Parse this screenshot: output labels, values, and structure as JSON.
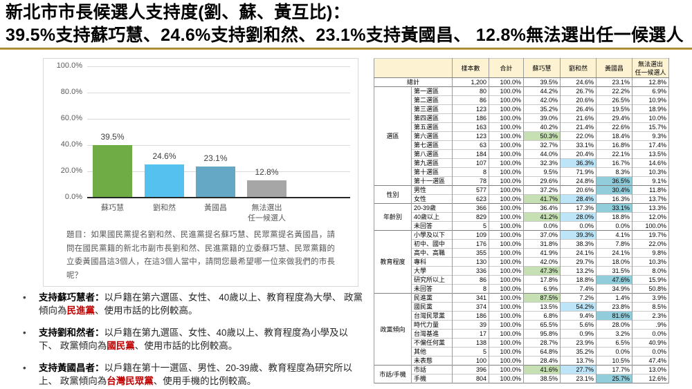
{
  "title": {
    "line1": "新北市市長候選人支持度(劉、蘇、黃互比)：",
    "line2": "39.5%支持蘇巧慧、24.6%支持劉和然、23.1%支持黃國昌、 12.8%無法選出任一候選人"
  },
  "chart_panel": {
    "question": "題目：如果國民黨提名劉和然、民進黨提名蘇巧慧、民眾黨提名黃國昌，請問在國民黨籍的新北市副市長劉和然、民進黨籍的立委蘇巧慧、民眾黨籍的立委黃國昌這3個人，在這3個人當中，請問您最希望哪一位來做我們的市長呢？"
  },
  "findings": [
    {
      "lead": "支持蘇巧慧者：",
      "pre": "以戶籍在第六選區、女性、 40歲以上、教育程度為大學、 政黨傾向為",
      "party": "民進黨",
      "post": "、使用市話的比例較高。"
    },
    {
      "lead": "支持劉和然者：",
      "pre": "以戶籍在第九選區、女性、40歲以上、教育程度為小學及以下、 政黨傾向為",
      "party": "國民黨",
      "post": "、使用市話的比例較高。"
    },
    {
      "lead": "支持黃國昌者：",
      "pre": "以戶籍在第十一選區、男性、20-39歲、教育程度為研究所以上、 政黨傾向為",
      "party": "台灣民眾黨",
      "post": "、使用手機的比例較高。"
    }
  ],
  "chart_data": [
    {
      "type": "bar",
      "title": "",
      "xlabel": "",
      "ylabel": "",
      "categories": [
        "蘇巧慧",
        "劉和然",
        "黃國昌",
        "無法選出\n任一候選人"
      ],
      "values": [
        39.5,
        24.6,
        23.1,
        12.8
      ],
      "data_labels": [
        "39.5%",
        "24.6%",
        "23.1%",
        "12.8%"
      ],
      "yticks": [
        "100.0%",
        "80.0%",
        "60.0%",
        "40.0%",
        "20.0%",
        "0.0%"
      ],
      "ylim": [
        0,
        100
      ],
      "grid": true,
      "legend": "none",
      "bar_colors": [
        "#6FAC46",
        "#55C1EE",
        "#64A8C6",
        "#A6A6A6"
      ]
    },
    {
      "type": "table",
      "columns": [
        "樣本數",
        "合計",
        "蘇巧慧",
        "劉和然",
        "黃國昌",
        "無法選出\n任一候選人"
      ],
      "highlight_colors": {
        "green": "#C6E0B4",
        "blue": "#BDE4F7",
        "teal": "#92CDDC"
      },
      "total_row": {
        "label": "總計",
        "values": [
          "1,200",
          "100.0%",
          "39.5%",
          "24.6%",
          "23.1%",
          "12.8%"
        ]
      },
      "groups": [
        {
          "label": "選區",
          "rows": [
            {
              "label": "第一選區",
              "values": [
                "80",
                "100.0%",
                "44.2%",
                "26.7%",
                "22.2%",
                "6.9%"
              ]
            },
            {
              "label": "第二選區",
              "values": [
                "86",
                "100.0%",
                "42.0%",
                "20.6%",
                "26.5%",
                "10.9%"
              ]
            },
            {
              "label": "第三選區",
              "values": [
                "123",
                "100.0%",
                "35.2%",
                "26.4%",
                "19.5%",
                "18.9%"
              ]
            },
            {
              "label": "第四選區",
              "values": [
                "186",
                "100.0%",
                "39.0%",
                "21.6%",
                "29.4%",
                "10.0%"
              ]
            },
            {
              "label": "第五選區",
              "values": [
                "163",
                "100.0%",
                "40.2%",
                "21.4%",
                "22.6%",
                "15.7%"
              ]
            },
            {
              "label": "第六選區",
              "values": [
                "123",
                "100.0%",
                "50.3%",
                "22.0%",
                "18.4%",
                "9.3%"
              ],
              "hl": {
                "2": "green"
              }
            },
            {
              "label": "第七選區",
              "values": [
                "63",
                "100.0%",
                "32.7%",
                "33.1%",
                "16.8%",
                "17.4%"
              ]
            },
            {
              "label": "第八選區",
              "values": [
                "184",
                "100.0%",
                "44.0%",
                "20.4%",
                "22.1%",
                "13.5%"
              ]
            },
            {
              "label": "第九選區",
              "values": [
                "107",
                "100.0%",
                "32.3%",
                "36.3%",
                "16.7%",
                "14.6%"
              ],
              "hl": {
                "3": "blue"
              }
            },
            {
              "label": "第十選區",
              "values": [
                "8",
                "100.0%",
                "9.5%",
                "71.9%",
                "8.3%",
                "10.3%"
              ]
            },
            {
              "label": "第十一選區",
              "values": [
                "78",
                "100.0%",
                "29.6%",
                "24.8%",
                "36.5%",
                "9.1%"
              ],
              "hl": {
                "4": "teal"
              }
            }
          ]
        },
        {
          "label": "性別",
          "rows": [
            {
              "label": "男性",
              "values": [
                "577",
                "100.0%",
                "37.2%",
                "20.6%",
                "30.4%",
                "11.8%"
              ],
              "hl": {
                "4": "teal"
              }
            },
            {
              "label": "女性",
              "values": [
                "623",
                "100.0%",
                "41.7%",
                "28.4%",
                "16.3%",
                "13.7%"
              ],
              "hl": {
                "2": "green",
                "3": "blue"
              }
            }
          ]
        },
        {
          "label": "年齡別",
          "rows": [
            {
              "label": "20-39歲",
              "values": [
                "366",
                "100.0%",
                "36.4%",
                "17.3%",
                "33.1%",
                "13.3%"
              ],
              "hl": {
                "4": "teal"
              }
            },
            {
              "label": "40歲以上",
              "values": [
                "829",
                "100.0%",
                "41.2%",
                "28.0%",
                "18.8%",
                "12.0%"
              ],
              "hl": {
                "2": "green",
                "3": "blue"
              }
            },
            {
              "label": "未回答",
              "values": [
                "5",
                "100.0%",
                "0.0%",
                "0.0%",
                "0.0%",
                "100.0%"
              ]
            }
          ]
        },
        {
          "label": "教育程度",
          "rows": [
            {
              "label": "小學及以下",
              "values": [
                "109",
                "100.0%",
                "37.0%",
                "39.3%",
                "4.1%",
                "19.7%"
              ],
              "hl": {
                "3": "blue"
              }
            },
            {
              "label": "初中、國中",
              "values": [
                "176",
                "100.0%",
                "31.8%",
                "38.3%",
                "7.8%",
                "22.0%"
              ]
            },
            {
              "label": "高中、高職",
              "values": [
                "355",
                "100.0%",
                "41.9%",
                "24.1%",
                "24.1%",
                "9.8%"
              ]
            },
            {
              "label": "專科",
              "values": [
                "130",
                "100.0%",
                "42.0%",
                "29.7%",
                "18.0%",
                "10.3%"
              ]
            },
            {
              "label": "大學",
              "values": [
                "336",
                "100.0%",
                "47.3%",
                "13.2%",
                "31.5%",
                "8.0%"
              ],
              "hl": {
                "2": "green"
              }
            },
            {
              "label": "研究所以上",
              "values": [
                "86",
                "100.0%",
                "17.8%",
                "18.8%",
                "47.6%",
                "15.9%"
              ],
              "hl": {
                "4": "teal"
              }
            },
            {
              "label": "未回答",
              "values": [
                "8",
                "100.0%",
                "6.9%",
                "7.4%",
                "34.9%",
                "50.8%"
              ]
            }
          ]
        },
        {
          "label": "政黨傾向",
          "rows": [
            {
              "label": "民進黨",
              "values": [
                "341",
                "100.0%",
                "87.5%",
                "7.2%",
                "1.4%",
                "3.9%"
              ],
              "hl": {
                "2": "green"
              }
            },
            {
              "label": "國民黨",
              "values": [
                "374",
                "100.0%",
                "13.5%",
                "54.2%",
                "23.8%",
                "8.5%"
              ],
              "hl": {
                "3": "blue"
              }
            },
            {
              "label": "台灣民眾黨",
              "values": [
                "186",
                "100.0%",
                "6.8%",
                "9.4%",
                "81.6%",
                "2.3%"
              ],
              "hl": {
                "4": "teal"
              }
            },
            {
              "label": "時代力量",
              "values": [
                "39",
                "100.0%",
                "65.5%",
                "5.6%",
                "28.0%",
                ".9%"
              ]
            },
            {
              "label": "台灣基進",
              "values": [
                "17",
                "100.0%",
                "95.8%",
                "0.9%",
                "3.2%",
                "0.0%"
              ]
            },
            {
              "label": "不偏任何黨",
              "values": [
                "138",
                "100.0%",
                "28.7%",
                "23.9%",
                "6.5%",
                "40.9%"
              ]
            },
            {
              "label": "其他",
              "values": [
                "5",
                "100.0%",
                "64.8%",
                "35.2%",
                "0.0%",
                "0.0%"
              ]
            },
            {
              "label": "未表態",
              "values": [
                "100",
                "100.0%",
                "28.4%",
                "13.7%",
                "10.5%",
                "47.4%"
              ]
            }
          ]
        },
        {
          "label": "市話/手機",
          "rows": [
            {
              "label": "市話",
              "values": [
                "396",
                "100.0%",
                "41.6%",
                "27.7%",
                "17.7%",
                "13.0%"
              ],
              "hl": {
                "2": "green",
                "3": "blue"
              }
            },
            {
              "label": "手機",
              "values": [
                "804",
                "100.0%",
                "38.5%",
                "23.1%",
                "25.7%",
                "12.6%"
              ],
              "hl": {
                "4": "teal"
              }
            }
          ]
        }
      ]
    }
  ]
}
